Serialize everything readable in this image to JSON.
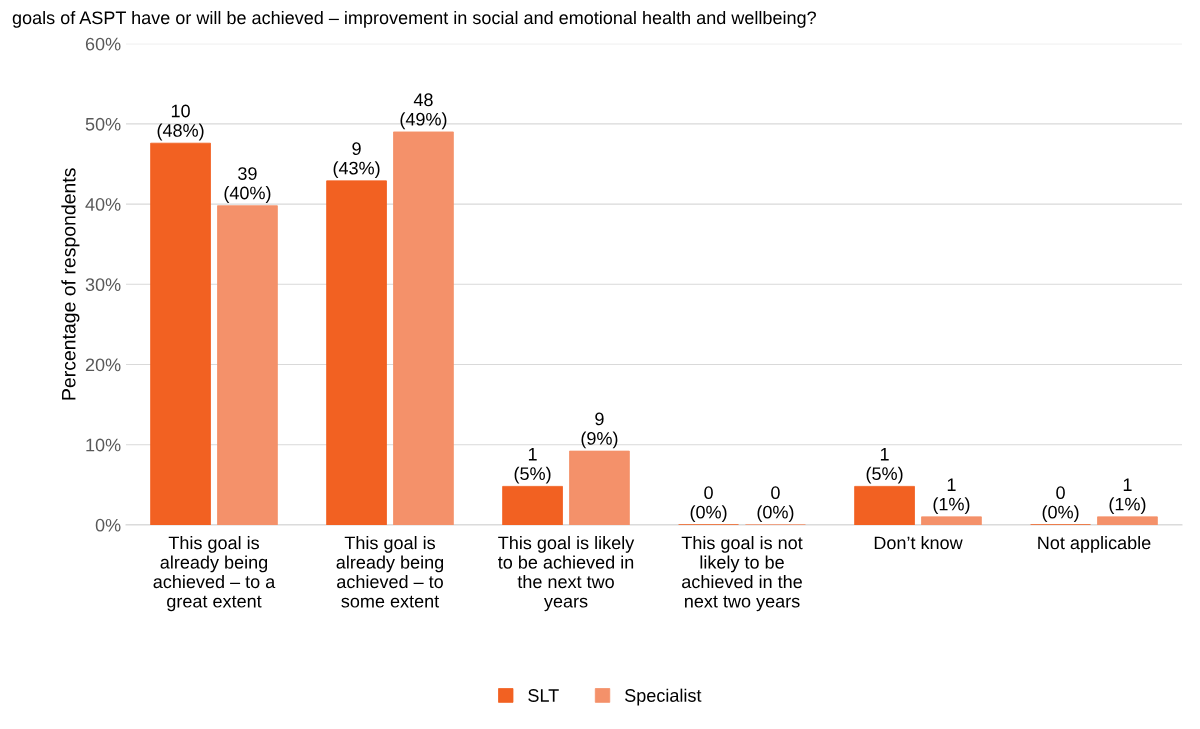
{
  "chart_data": {
    "type": "bar",
    "title": "goals of ASPT have or will be achieved – improvement in social and emotional health and wellbeing?",
    "ylabel": "Percentage of respondents",
    "categories": [
      "This goal is\nalready being\nachieved – to a\ngreat extent",
      "This goal is\nalready being\nachieved – to\nsome extent",
      "This goal is likely\nto be achieved in\nthe next two\nyears",
      "This goal is not\nlikely to be\nachieved in the\nnext two years",
      "Don’t know",
      "Not applicable"
    ],
    "series": [
      {
        "name": "SLT",
        "color": "#f26122",
        "values": [
          47.6,
          42.9,
          4.8,
          0,
          4.8,
          0
        ],
        "value_labels": [
          "10\n(48%)",
          "9\n(43%)",
          "1\n(5%)",
          "0\n(0%)",
          "1\n(5%)",
          "0\n(0%)"
        ]
      },
      {
        "name": "Specialist",
        "color": "#f4916a",
        "values": [
          39.8,
          49,
          9.2,
          0,
          1,
          1
        ],
        "value_labels": [
          "39\n(40%)",
          "48\n(49%)",
          "9\n(9%)",
          "0\n(0%)",
          "1\n(1%)",
          "1\n(1%)"
        ]
      }
    ],
    "ylim": [
      0,
      60
    ],
    "yticks": [
      {
        "value": 0,
        "label": "0%"
      },
      {
        "value": 10,
        "label": "10%"
      },
      {
        "value": 20,
        "label": "20%"
      },
      {
        "value": 30,
        "label": "30%"
      },
      {
        "value": 40,
        "label": "40%"
      },
      {
        "value": 50,
        "label": "50%"
      },
      {
        "value": 60,
        "label": "60%"
      }
    ],
    "grid": "y",
    "legend": "bottom"
  }
}
